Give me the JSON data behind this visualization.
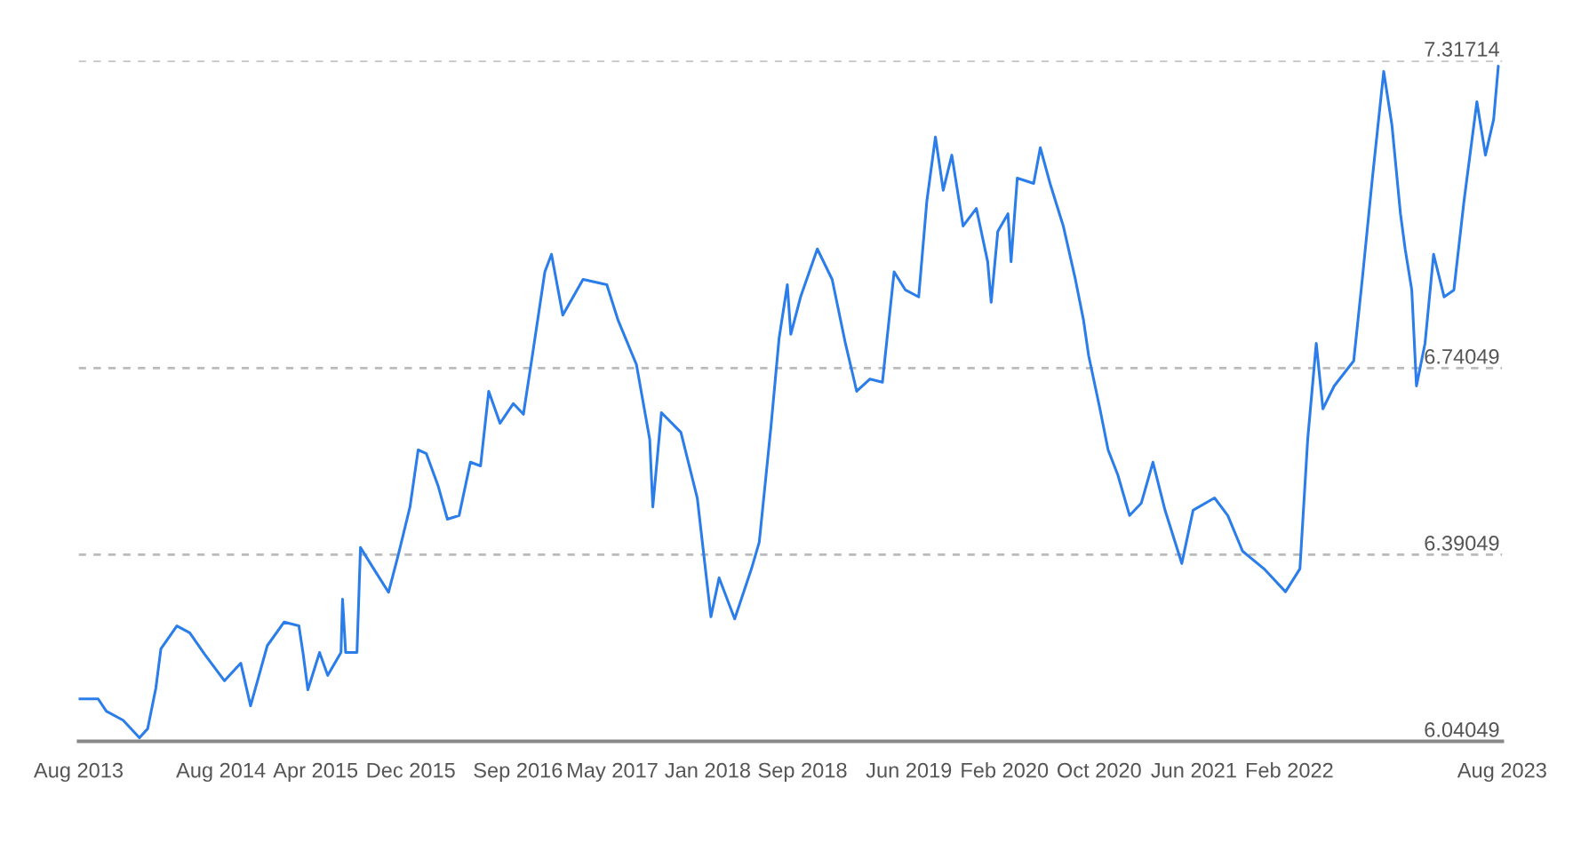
{
  "chart_data": {
    "type": "line",
    "x": [
      "2013-08-01",
      "2013-09-20",
      "2013-10-11",
      "2013-11-23",
      "2014-01-04",
      "2014-01-25",
      "2014-02-15",
      "2014-02-28",
      "2014-04-10",
      "2014-05-13",
      "2014-06-20",
      "2014-08-10",
      "2014-09-21",
      "2014-10-16",
      "2014-11-28",
      "2015-01-10",
      "2015-02-17",
      "2015-02-28",
      "2015-03-12",
      "2015-04-11",
      "2015-05-02",
      "2015-06-05",
      "2015-06-09",
      "2015-06-17",
      "2015-07-16",
      "2015-07-25",
      "2015-08-28",
      "2015-10-05",
      "2015-10-30",
      "2015-11-29",
      "2015-12-20",
      "2016-01-10",
      "2016-02-09",
      "2016-03-04",
      "2016-04-03",
      "2016-05-02",
      "2016-05-28",
      "2016-06-18",
      "2016-07-17",
      "2016-08-20",
      "2016-09-15",
      "2016-10-10",
      "2016-11-09",
      "2016-11-26",
      "2016-12-25",
      "2017-02-15",
      "2017-04-17",
      "2017-05-16",
      "2017-07-02",
      "2017-08-05",
      "2017-08-13",
      "2017-09-04",
      "2017-10-24",
      "2017-12-05",
      "2018-01-09",
      "2018-01-30",
      "2018-03-11",
      "2018-04-23",
      "2018-05-13",
      "2018-06-12",
      "2018-07-03",
      "2018-07-24",
      "2018-08-02",
      "2018-08-27",
      "2018-10-09",
      "2018-11-16",
      "2018-12-20",
      "2019-01-18",
      "2019-02-21",
      "2019-03-25",
      "2019-04-24",
      "2019-05-23",
      "2019-06-26",
      "2019-07-17",
      "2019-08-08",
      "2019-08-28",
      "2019-09-19",
      "2019-10-18",
      "2019-11-21",
      "2019-12-20",
      "2019-12-29",
      "2020-01-15",
      "2020-02-10",
      "2020-02-18",
      "2020-03-05",
      "2020-04-16",
      "2020-05-03",
      "2020-05-28",
      "2020-07-01",
      "2020-08-01",
      "2020-08-22",
      "2020-09-04",
      "2020-10-03",
      "2020-10-24",
      "2020-11-18",
      "2020-12-18",
      "2021-01-17",
      "2021-02-16",
      "2021-03-19",
      "2021-05-01",
      "2021-05-30",
      "2021-07-24",
      "2021-08-27",
      "2021-10-04",
      "2021-11-28",
      "2022-01-22",
      "2022-02-28",
      "2022-03-20",
      "2022-04-11",
      "2022-04-28",
      "2022-05-27",
      "2022-07-16",
      "2022-08-07",
      "2022-09-02",
      "2022-10-01",
      "2022-10-22",
      "2022-11-13",
      "2022-11-25",
      "2022-12-12",
      "2022-12-24",
      "2023-01-15",
      "2023-02-06",
      "2023-03-05",
      "2023-03-30",
      "2023-04-25",
      "2023-05-28",
      "2023-06-19",
      "2023-07-10",
      "2023-07-22"
    ],
    "series": [
      {
        "color": "#2b7de9",
        "values": [
          6.12,
          6.12,
          6.097,
          6.08,
          6.047,
          6.064,
          6.14,
          6.214,
          6.257,
          6.244,
          6.204,
          6.154,
          6.187,
          6.107,
          6.22,
          6.264,
          6.257,
          6.204,
          6.137,
          6.207,
          6.164,
          6.207,
          6.307,
          6.207,
          6.207,
          6.404,
          6.364,
          6.32,
          6.39,
          6.48,
          6.587,
          6.58,
          6.52,
          6.457,
          6.464,
          6.564,
          6.557,
          6.697,
          6.637,
          6.674,
          6.654,
          6.774,
          6.921,
          6.954,
          6.84,
          6.907,
          6.897,
          6.83,
          6.747,
          6.607,
          6.48,
          6.657,
          6.62,
          6.497,
          6.274,
          6.347,
          6.27,
          6.364,
          6.414,
          6.63,
          6.797,
          6.897,
          6.804,
          6.874,
          6.964,
          6.907,
          6.787,
          6.697,
          6.72,
          6.714,
          6.921,
          6.887,
          6.874,
          7.054,
          7.174,
          7.074,
          7.14,
          7.007,
          7.04,
          6.94,
          6.864,
          6.997,
          7.03,
          6.94,
          7.097,
          7.087,
          7.154,
          7.087,
          7.007,
          6.907,
          6.83,
          6.764,
          6.664,
          6.587,
          6.54,
          6.464,
          6.487,
          6.564,
          6.474,
          6.374,
          6.474,
          6.497,
          6.464,
          6.397,
          6.364,
          6.321,
          6.364,
          6.607,
          6.787,
          6.664,
          6.707,
          6.754,
          6.907,
          7.097,
          7.297,
          7.197,
          7.03,
          6.964,
          6.887,
          6.707,
          6.787,
          6.954,
          6.874,
          6.887,
          7.054,
          7.24,
          7.14,
          7.207,
          7.307
        ]
      }
    ],
    "xlim": [
      "2013-08-01",
      "2023-08-01"
    ],
    "xticks": [
      {
        "value": "2013-08-01",
        "label": "Aug 2013"
      },
      {
        "value": "2014-08-01",
        "label": "Aug 2014"
      },
      {
        "value": "2015-04-01",
        "label": "Apr 2015"
      },
      {
        "value": "2015-12-01",
        "label": "Dec 2015"
      },
      {
        "value": "2016-09-01",
        "label": "Sep 2016"
      },
      {
        "value": "2017-05-01",
        "label": "May 2017"
      },
      {
        "value": "2018-01-01",
        "label": "Jan 2018"
      },
      {
        "value": "2018-09-01",
        "label": "Sep 2018"
      },
      {
        "value": "2019-06-01",
        "label": "Jun 2019"
      },
      {
        "value": "2020-02-01",
        "label": "Feb 2020"
      },
      {
        "value": "2020-10-01",
        "label": "Oct 2020"
      },
      {
        "value": "2021-06-01",
        "label": "Jun 2021"
      },
      {
        "value": "2022-02-01",
        "label": "Feb 2022"
      },
      {
        "value": "2023-08-01",
        "label": "Aug 2023"
      }
    ],
    "ylim": [
      6.04049,
      7.31714
    ],
    "yticks": [
      6.04049,
      6.39049,
      6.74049,
      7.31714
    ],
    "grid": "y",
    "marker": "none",
    "line_style": "solid"
  }
}
